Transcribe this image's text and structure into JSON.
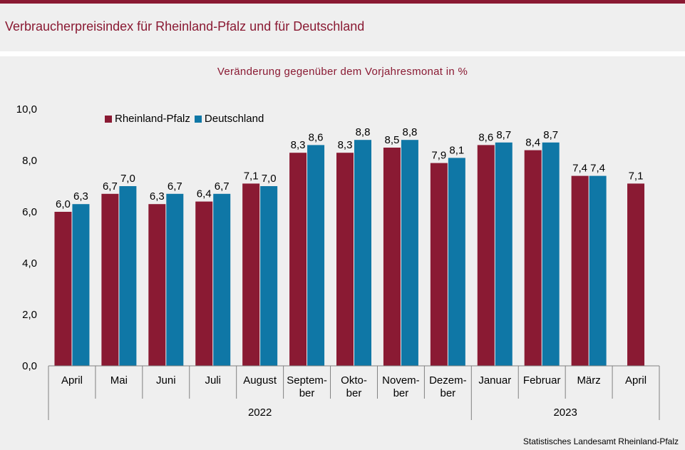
{
  "header": {
    "title": "Verbraucherpreisindex für Rheinland-Pfalz und für Deutschland"
  },
  "source": "Statistisches Landesamt Rheinland-Pfalz",
  "colors": {
    "accent": "#8a1a33",
    "rheinland_pfalz": "#8a1a33",
    "deutschland": "#0f77a6"
  },
  "chart_data": {
    "type": "bar",
    "title": "Veränderung gegenüber dem Vorjahresmonat in %",
    "categories": [
      [
        "April"
      ],
      [
        "Mai"
      ],
      [
        "Juni"
      ],
      [
        "Juli"
      ],
      [
        "August"
      ],
      [
        "Septem-",
        "ber"
      ],
      [
        "Okto-",
        "ber"
      ],
      [
        "Novem-",
        "ber"
      ],
      [
        "Dezem-",
        "ber"
      ],
      [
        "Januar"
      ],
      [
        "Februar"
      ],
      [
        "März"
      ],
      [
        "April"
      ]
    ],
    "year_groups": [
      {
        "label": "2022",
        "count": 9
      },
      {
        "label": "2023",
        "count": 4
      }
    ],
    "series": [
      {
        "name": "Rheinland-Pfalz",
        "values": [
          6.0,
          6.7,
          6.3,
          6.4,
          7.1,
          8.3,
          8.3,
          8.5,
          7.9,
          8.6,
          8.4,
          7.4,
          7.1
        ],
        "labels": [
          "6,0",
          "6,7",
          "6,3",
          "6,4",
          "7,1",
          "8,3",
          "8,3",
          "8,5",
          "7,9",
          "8,6",
          "8,4",
          "7,4",
          "7,1"
        ]
      },
      {
        "name": "Deutschland",
        "values": [
          6.3,
          7.0,
          6.7,
          6.7,
          7.0,
          8.6,
          8.8,
          8.8,
          8.1,
          8.7,
          8.7,
          7.4,
          null
        ],
        "labels": [
          "6,3",
          "7,0",
          "6,7",
          "6,7",
          "7,0",
          "8,6",
          "8,8",
          "8,8",
          "8,1",
          "8,7",
          "8,7",
          "7,4",
          ""
        ]
      }
    ],
    "ylim": [
      0,
      10
    ],
    "yticks": [
      "0,0",
      "2,0",
      "4,0",
      "6,0",
      "8,0",
      "10,0"
    ],
    "grid": false,
    "legend_position": "top-left"
  }
}
